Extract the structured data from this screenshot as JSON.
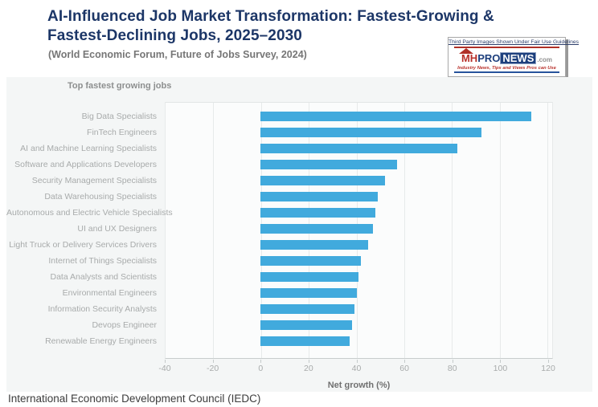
{
  "page": {
    "title_line1": "AI-Influenced Job Market Transformation: Fastest-Growing &",
    "title_line2": "Fastest-Declining Jobs, 2025–2030",
    "subtitle": "(World Economic Forum, Future of Jobs Survey, 2024)",
    "footer": "International Economic Development Council (IEDC)",
    "title_color": "#1c3667"
  },
  "fair_use_box": {
    "notice": "Third Party Images Shown Under Fair Use Guidelines",
    "brand_mh": "MH",
    "brand_pro": "PRO",
    "brand_news": "NEWS",
    "brand_tld": ".com",
    "tagline": "Industry News, Tips and Views Pros can Use",
    "red": "#b03028",
    "blue": "#27549c"
  },
  "chart_data": {
    "type": "bar",
    "orientation": "horizontal",
    "panel_label": "Top fastest growing jobs",
    "title": "Top fastest growing jobs",
    "categories": [
      "Big Data Specialists",
      "FinTech Engineers",
      "AI and Machine Learning Specialists",
      "Software and Applications Developers",
      "Security Management Specialists",
      "Data Warehousing Specialists",
      "Autonomous and Electric Vehicle Specialists",
      "UI and UX Designers",
      "Light Truck or Delivery Services Drivers",
      "Internet of Things Specialists",
      "Data Analysts and Scientists",
      "Environmental Engineers",
      "Information Security Analysts",
      "Devops Engineer",
      "Renewable Energy Engineers"
    ],
    "values": [
      113,
      92,
      82,
      57,
      52,
      49,
      48,
      47,
      45,
      42,
      41,
      40,
      39,
      38,
      37
    ],
    "xlabel": "Net growth (%)",
    "x_ticks": [
      -40,
      -20,
      0,
      20,
      40,
      60,
      80,
      100,
      120
    ],
    "xlim": [
      -40,
      122
    ],
    "bar_color": "#41aadd",
    "grid": true,
    "legend": false
  }
}
